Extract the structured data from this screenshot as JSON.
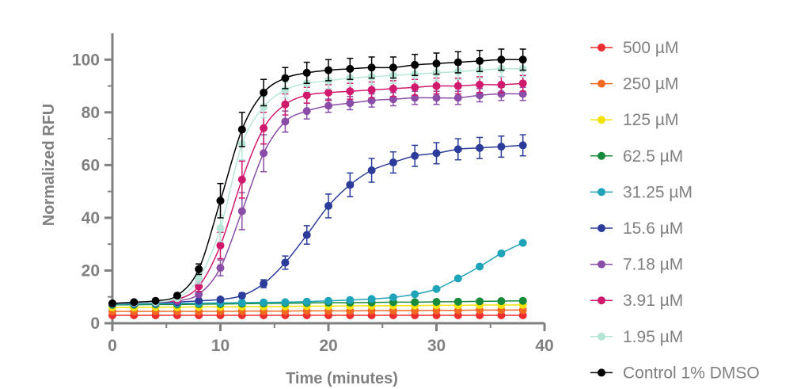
{
  "chart_data": {
    "type": "line",
    "title": "",
    "xlabel": "Time (minutes)",
    "ylabel": "Normalized RFU",
    "xlim": [
      0,
      40
    ],
    "ylim": [
      0,
      110
    ],
    "xticks": [
      0,
      10,
      20,
      30,
      40
    ],
    "yticks": [
      0,
      20,
      40,
      60,
      80,
      100
    ],
    "xtick_labels": [
      "0",
      "10",
      "20",
      "30",
      "40"
    ],
    "ytick_labels": [
      "0",
      "20",
      "40",
      "60",
      "80",
      "100"
    ],
    "legend_position": "right",
    "grid": false,
    "x": [
      0,
      2,
      4,
      6,
      8,
      10,
      12,
      14,
      16,
      18,
      20,
      22,
      24,
      26,
      28,
      30,
      32,
      34,
      36,
      38
    ],
    "series": [
      {
        "name": "500 µM",
        "color": "#ee2e2e",
        "values": [
          3,
          3,
          3,
          3,
          3,
          3,
          3,
          3,
          3,
          3,
          3,
          3,
          3,
          3,
          3,
          3,
          3,
          3,
          3,
          3
        ],
        "errors": [
          0,
          0,
          0,
          0,
          0,
          0,
          0,
          0,
          0,
          0,
          0,
          0,
          0,
          0,
          0,
          0,
          0,
          0,
          0,
          0
        ]
      },
      {
        "name": "250 µM",
        "color": "#f26a22",
        "values": [
          4.5,
          4.5,
          4.5,
          4.5,
          4.5,
          4.5,
          4.6,
          4.6,
          4.6,
          4.7,
          4.7,
          4.7,
          4.8,
          4.8,
          4.8,
          4.9,
          4.9,
          5,
          5,
          5
        ],
        "errors": [
          0,
          0,
          0,
          0,
          0,
          0,
          0,
          0,
          0,
          0,
          0,
          0,
          0,
          0,
          0,
          0,
          0,
          0,
          0,
          0
        ]
      },
      {
        "name": "125 µM",
        "color": "#f2e205",
        "values": [
          6,
          6,
          6.1,
          6.1,
          6.2,
          6.2,
          6.3,
          6.3,
          6.4,
          6.5,
          6.5,
          6.6,
          6.6,
          6.7,
          6.7,
          6.8,
          6.8,
          6.9,
          6.9,
          7
        ],
        "errors": [
          0,
          0,
          0,
          0,
          0,
          0,
          0,
          0,
          0,
          0,
          0,
          0,
          0,
          0,
          0,
          0,
          0,
          0,
          0,
          0
        ]
      },
      {
        "name": "62.5 µM",
        "color": "#188a3c",
        "values": [
          7,
          7,
          7.1,
          7.1,
          7.2,
          7.3,
          7.4,
          7.5,
          7.6,
          7.7,
          7.8,
          7.8,
          7.9,
          8,
          8,
          8.1,
          8.2,
          8.3,
          8.4,
          8.5
        ],
        "errors": [
          0,
          0,
          0,
          0,
          0,
          0,
          0,
          0,
          0,
          0,
          0,
          0,
          0,
          0,
          0,
          0,
          0,
          0,
          0,
          0
        ]
      },
      {
        "name": "31.25 µM",
        "color": "#1fa3b8",
        "values": [
          7.2,
          7.3,
          7.4,
          7.5,
          7.6,
          7.7,
          7.8,
          7.9,
          8,
          8.2,
          8.5,
          8.8,
          9.2,
          9.8,
          11,
          13,
          17,
          21.5,
          26.5,
          30.5
        ],
        "errors": [
          0,
          0,
          0,
          0,
          0,
          0,
          0,
          0,
          0,
          0,
          0,
          0,
          0,
          0,
          0,
          0,
          0,
          0,
          0,
          0
        ]
      },
      {
        "name": "15.6 µM",
        "color": "#2b3c9a",
        "values": [
          7.5,
          7.6,
          7.8,
          8,
          8.5,
          9,
          10.5,
          15,
          23,
          33.5,
          44.5,
          52.5,
          58,
          61,
          63.5,
          64.5,
          66,
          66.5,
          67,
          67.5
        ],
        "errors": [
          0,
          0,
          0,
          0,
          0,
          0.5,
          1,
          1.5,
          2.5,
          3.5,
          4.5,
          4.5,
          4.5,
          4,
          4,
          4,
          4,
          4,
          4,
          4
        ]
      },
      {
        "name": "7.18 µM",
        "color": "#8a4ea8",
        "values": [
          7.5,
          7.8,
          8,
          8.5,
          11,
          21,
          42.5,
          64.5,
          76.5,
          80.5,
          82.5,
          83.5,
          84.5,
          85,
          85.5,
          85.5,
          85.5,
          86.5,
          87,
          87
        ],
        "errors": [
          0,
          0,
          0,
          0,
          1,
          3,
          7,
          7,
          4,
          3,
          2.5,
          2.5,
          2.5,
          2.5,
          2.5,
          2.5,
          2.5,
          2.5,
          2.5,
          2.5
        ]
      },
      {
        "name": "3.91 µM",
        "color": "#cf1a6e",
        "values": [
          7.5,
          7.8,
          8,
          9,
          14,
          29.5,
          54.5,
          74,
          83,
          86.5,
          87.5,
          88,
          88.5,
          89,
          89.5,
          90,
          90,
          90.5,
          90.5,
          91
        ],
        "errors": [
          0,
          0,
          0,
          0,
          2,
          5,
          7,
          6,
          4,
          3,
          3,
          3,
          3,
          3,
          3,
          3,
          3,
          3,
          3,
          3
        ]
      },
      {
        "name": "1.95 µM",
        "color": "#b6e6d8",
        "values": [
          7.5,
          7.8,
          8,
          9.5,
          17,
          36,
          68,
          82,
          88.5,
          91,
          92,
          93,
          93.5,
          94,
          94.5,
          95,
          95.5,
          96,
          96.5,
          96.5
        ],
        "errors": [
          0,
          0,
          0,
          0,
          2,
          5,
          6,
          4,
          3,
          3,
          3,
          3,
          3,
          3,
          3,
          3,
          3,
          3,
          3,
          3
        ]
      },
      {
        "name": "Control 1% DMSO",
        "color": "#000000",
        "values": [
          7.5,
          8,
          8.5,
          10.5,
          20.5,
          46.5,
          73.5,
          87.5,
          93,
          95,
          96,
          96.5,
          97,
          97,
          98,
          98.5,
          99,
          99.5,
          100,
          100
        ],
        "errors": [
          0,
          0,
          0,
          0,
          2,
          6.5,
          6.5,
          5,
          4,
          4,
          4,
          4,
          4,
          4,
          4,
          4,
          4,
          4,
          4,
          4
        ]
      }
    ]
  }
}
